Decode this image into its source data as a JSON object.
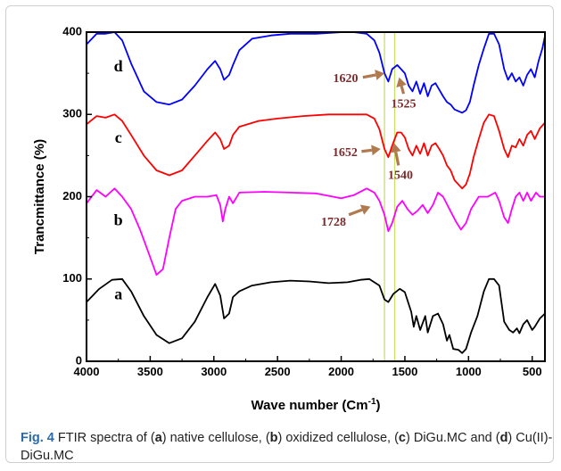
{
  "chart_data": {
    "type": "line",
    "xlabel": "Wave number (Cm",
    "xlabel_sup": "-1",
    "xlabel_end": ")",
    "ylabel": "Trancmittance (%)",
    "xlim": [
      4000,
      400
    ],
    "ylim": [
      0,
      400
    ],
    "x_ticks": [
      "4000",
      "3500",
      "3000",
      "2500",
      "2000",
      "1500",
      "1000",
      "500"
    ],
    "y_ticks": [
      "0",
      "100",
      "200",
      "300",
      "400"
    ],
    "grid": false,
    "vertical_markers": [
      1660,
      1580
    ],
    "marker_color": "#c8e06a",
    "series": [
      {
        "label": "a",
        "color": "#000000",
        "label_at": [
          3750,
          80
        ],
        "points": [
          [
            4000,
            72
          ],
          [
            3900,
            88
          ],
          [
            3800,
            99
          ],
          [
            3720,
            100
          ],
          [
            3650,
            85
          ],
          [
            3550,
            55
          ],
          [
            3450,
            32
          ],
          [
            3350,
            22
          ],
          [
            3250,
            28
          ],
          [
            3150,
            48
          ],
          [
            3050,
            78
          ],
          [
            2990,
            94
          ],
          [
            2950,
            80
          ],
          [
            2920,
            52
          ],
          [
            2880,
            58
          ],
          [
            2850,
            78
          ],
          [
            2800,
            85
          ],
          [
            2700,
            92
          ],
          [
            2550,
            96
          ],
          [
            2400,
            98
          ],
          [
            2250,
            97
          ],
          [
            2100,
            95
          ],
          [
            1950,
            96
          ],
          [
            1850,
            99
          ],
          [
            1780,
            100
          ],
          [
            1700,
            92
          ],
          [
            1660,
            75
          ],
          [
            1630,
            72
          ],
          [
            1590,
            82
          ],
          [
            1540,
            88
          ],
          [
            1500,
            84
          ],
          [
            1450,
            60
          ],
          [
            1430,
            42
          ],
          [
            1410,
            55
          ],
          [
            1380,
            38
          ],
          [
            1340,
            55
          ],
          [
            1320,
            35
          ],
          [
            1280,
            55
          ],
          [
            1240,
            58
          ],
          [
            1200,
            45
          ],
          [
            1170,
            25
          ],
          [
            1150,
            32
          ],
          [
            1120,
            15
          ],
          [
            1080,
            14
          ],
          [
            1050,
            10
          ],
          [
            1020,
            15
          ],
          [
            980,
            35
          ],
          [
            930,
            55
          ],
          [
            880,
            85
          ],
          [
            840,
            100
          ],
          [
            800,
            100
          ],
          [
            760,
            92
          ],
          [
            720,
            48
          ],
          [
            680,
            38
          ],
          [
            650,
            35
          ],
          [
            620,
            40
          ],
          [
            600,
            34
          ],
          [
            570,
            45
          ],
          [
            540,
            50
          ],
          [
            500,
            38
          ],
          [
            480,
            42
          ],
          [
            440,
            52
          ],
          [
            400,
            58
          ]
        ]
      },
      {
        "label": "b",
        "color": "#ff00ff",
        "label_at": [
          3750,
          170
        ],
        "points": [
          [
            4000,
            192
          ],
          [
            3920,
            208
          ],
          [
            3850,
            200
          ],
          [
            3780,
            210
          ],
          [
            3720,
            200
          ],
          [
            3650,
            185
          ],
          [
            3580,
            160
          ],
          [
            3520,
            135
          ],
          [
            3450,
            105
          ],
          [
            3400,
            112
          ],
          [
            3350,
            150
          ],
          [
            3300,
            185
          ],
          [
            3250,
            195
          ],
          [
            3150,
            200
          ],
          [
            3050,
            200
          ],
          [
            2980,
            202
          ],
          [
            2950,
            190
          ],
          [
            2930,
            170
          ],
          [
            2910,
            185
          ],
          [
            2880,
            200
          ],
          [
            2850,
            192
          ],
          [
            2800,
            205
          ],
          [
            2600,
            206
          ],
          [
            2400,
            205
          ],
          [
            2200,
            204
          ],
          [
            2000,
            198
          ],
          [
            1900,
            202
          ],
          [
            1800,
            210
          ],
          [
            1740,
            205
          ],
          [
            1700,
            195
          ],
          [
            1660,
            178
          ],
          [
            1630,
            158
          ],
          [
            1600,
            168
          ],
          [
            1560,
            188
          ],
          [
            1520,
            195
          ],
          [
            1480,
            185
          ],
          [
            1440,
            178
          ],
          [
            1400,
            183
          ],
          [
            1360,
            190
          ],
          [
            1320,
            180
          ],
          [
            1280,
            190
          ],
          [
            1240,
            205
          ],
          [
            1200,
            200
          ],
          [
            1150,
            185
          ],
          [
            1100,
            170
          ],
          [
            1060,
            160
          ],
          [
            1020,
            168
          ],
          [
            980,
            185
          ],
          [
            920,
            200
          ],
          [
            850,
            200
          ],
          [
            790,
            205
          ],
          [
            760,
            195
          ],
          [
            720,
            175
          ],
          [
            690,
            168
          ],
          [
            660,
            185
          ],
          [
            630,
            200
          ],
          [
            600,
            205
          ],
          [
            570,
            195
          ],
          [
            540,
            205
          ],
          [
            510,
            195
          ],
          [
            470,
            205
          ],
          [
            440,
            200
          ],
          [
            400,
            200
          ]
        ]
      },
      {
        "label": "c",
        "color": "#ff0000",
        "label_at": [
          3750,
          270
        ],
        "points": [
          [
            4000,
            288
          ],
          [
            3920,
            298
          ],
          [
            3850,
            296
          ],
          [
            3780,
            300
          ],
          [
            3720,
            292
          ],
          [
            3650,
            275
          ],
          [
            3550,
            250
          ],
          [
            3450,
            232
          ],
          [
            3350,
            226
          ],
          [
            3250,
            232
          ],
          [
            3150,
            250
          ],
          [
            3050,
            268
          ],
          [
            2990,
            278
          ],
          [
            2950,
            270
          ],
          [
            2920,
            258
          ],
          [
            2880,
            262
          ],
          [
            2850,
            275
          ],
          [
            2800,
            285
          ],
          [
            2650,
            292
          ],
          [
            2500,
            295
          ],
          [
            2300,
            298
          ],
          [
            2100,
            300
          ],
          [
            1900,
            300
          ],
          [
            1800,
            300
          ],
          [
            1740,
            295
          ],
          [
            1700,
            282
          ],
          [
            1660,
            258
          ],
          [
            1630,
            248
          ],
          [
            1600,
            262
          ],
          [
            1560,
            278
          ],
          [
            1530,
            278
          ],
          [
            1500,
            272
          ],
          [
            1470,
            258
          ],
          [
            1440,
            250
          ],
          [
            1410,
            262
          ],
          [
            1380,
            252
          ],
          [
            1350,
            265
          ],
          [
            1320,
            250
          ],
          [
            1290,
            262
          ],
          [
            1260,
            265
          ],
          [
            1230,
            258
          ],
          [
            1200,
            250
          ],
          [
            1170,
            238
          ],
          [
            1140,
            232
          ],
          [
            1110,
            220
          ],
          [
            1080,
            215
          ],
          [
            1050,
            210
          ],
          [
            1020,
            215
          ],
          [
            990,
            228
          ],
          [
            960,
            248
          ],
          [
            920,
            270
          ],
          [
            880,
            290
          ],
          [
            840,
            300
          ],
          [
            800,
            298
          ],
          [
            760,
            280
          ],
          [
            720,
            258
          ],
          [
            690,
            248
          ],
          [
            660,
            262
          ],
          [
            630,
            260
          ],
          [
            600,
            270
          ],
          [
            570,
            262
          ],
          [
            540,
            275
          ],
          [
            510,
            280
          ],
          [
            480,
            270
          ],
          [
            440,
            283
          ],
          [
            400,
            290
          ]
        ]
      },
      {
        "label": "d",
        "color": "#0000ff",
        "label_at": [
          3750,
          357
        ],
        "points": [
          [
            4000,
            385
          ],
          [
            3920,
            398
          ],
          [
            3850,
            398
          ],
          [
            3780,
            400
          ],
          [
            3720,
            390
          ],
          [
            3650,
            362
          ],
          [
            3550,
            328
          ],
          [
            3450,
            315
          ],
          [
            3350,
            312
          ],
          [
            3250,
            318
          ],
          [
            3150,
            335
          ],
          [
            3050,
            355
          ],
          [
            2990,
            365
          ],
          [
            2950,
            355
          ],
          [
            2920,
            342
          ],
          [
            2880,
            348
          ],
          [
            2850,
            360
          ],
          [
            2800,
            378
          ],
          [
            2700,
            392
          ],
          [
            2550,
            396
          ],
          [
            2400,
            398
          ],
          [
            2200,
            398
          ],
          [
            2000,
            400
          ],
          [
            1900,
            400
          ],
          [
            1800,
            398
          ],
          [
            1740,
            390
          ],
          [
            1700,
            375
          ],
          [
            1660,
            350
          ],
          [
            1630,
            340
          ],
          [
            1600,
            355
          ],
          [
            1560,
            360
          ],
          [
            1530,
            355
          ],
          [
            1500,
            350
          ],
          [
            1470,
            335
          ],
          [
            1440,
            328
          ],
          [
            1410,
            340
          ],
          [
            1380,
            325
          ],
          [
            1350,
            338
          ],
          [
            1320,
            322
          ],
          [
            1290,
            335
          ],
          [
            1260,
            338
          ],
          [
            1230,
            330
          ],
          [
            1200,
            322
          ],
          [
            1170,
            315
          ],
          [
            1140,
            312
          ],
          [
            1110,
            306
          ],
          [
            1080,
            304
          ],
          [
            1050,
            302
          ],
          [
            1020,
            305
          ],
          [
            990,
            315
          ],
          [
            960,
            335
          ],
          [
            920,
            360
          ],
          [
            880,
            380
          ],
          [
            840,
            398
          ],
          [
            800,
            398
          ],
          [
            760,
            385
          ],
          [
            720,
            355
          ],
          [
            690,
            342
          ],
          [
            660,
            350
          ],
          [
            630,
            340
          ],
          [
            600,
            345
          ],
          [
            570,
            335
          ],
          [
            540,
            348
          ],
          [
            510,
            355
          ],
          [
            480,
            345
          ],
          [
            450,
            365
          ],
          [
            420,
            380
          ],
          [
            400,
            395
          ]
        ]
      }
    ],
    "annotations": [
      {
        "text": "1620",
        "text_at": [
          1965,
          343
        ],
        "tail": [
          1830,
          345
        ],
        "head": [
          1660,
          350
        ]
      },
      {
        "text": "1525",
        "text_at": [
          1510,
          312
        ],
        "tail": [
          1510,
          325
        ],
        "head": [
          1545,
          345
        ]
      },
      {
        "text": "1652",
        "text_at": [
          1970,
          253
        ],
        "tail": [
          1840,
          255
        ],
        "head": [
          1690,
          258
        ]
      },
      {
        "text": "1540",
        "text_at": [
          1535,
          225
        ],
        "tail": [
          1550,
          238
        ],
        "head": [
          1585,
          265
        ]
      },
      {
        "text": "1728",
        "text_at": [
          2060,
          168
        ],
        "tail": [
          1940,
          178
        ],
        "head": [
          1770,
          188
        ]
      }
    ]
  },
  "caption": {
    "fig_num": "Fig. 4",
    "parts": [
      {
        "t": "  FTIR spectra of (",
        "b": false
      },
      {
        "t": "a",
        "b": true
      },
      {
        "t": ") native cellulose, (",
        "b": false
      },
      {
        "t": "b",
        "b": true
      },
      {
        "t": ") oxidized cellulose, (",
        "b": false
      },
      {
        "t": "c",
        "b": true
      },
      {
        "t": ") DiGu.MC and (",
        "b": false
      },
      {
        "t": "d",
        "b": true
      },
      {
        "t": ") Cu(II)-DiGu.MC",
        "b": false
      }
    ]
  }
}
